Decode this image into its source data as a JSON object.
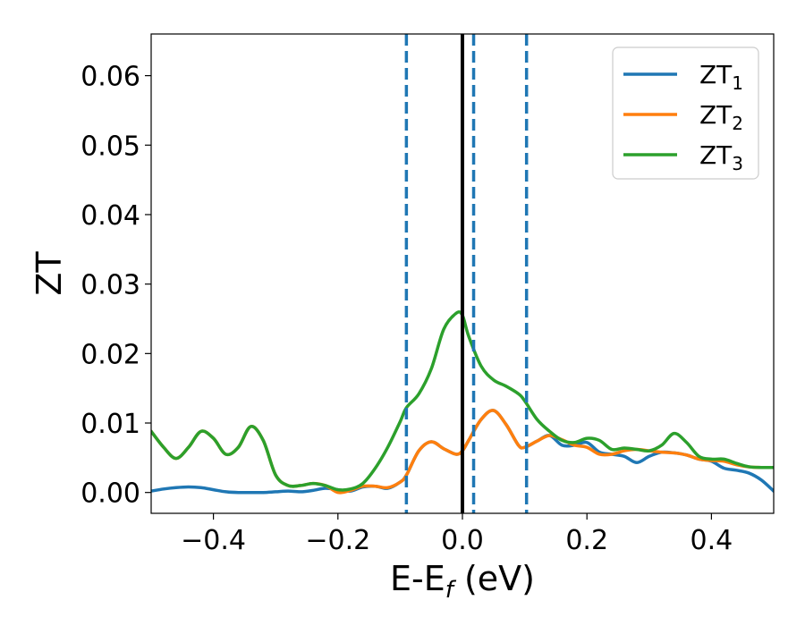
{
  "chart_data": {
    "type": "line",
    "xlabel": "E-E",
    "xlabel_sub": "f",
    "xlabel_unit": " (eV)",
    "ylabel": "ZT",
    "xlim": [
      -0.5,
      0.5
    ],
    "ylim": [
      -0.003,
      0.066
    ],
    "xticks": [
      -0.4,
      -0.2,
      0.0,
      0.2,
      0.4
    ],
    "xtick_labels": [
      "−0.4",
      "−0.2",
      "0.0",
      "0.2",
      "0.4"
    ],
    "yticks": [
      0.0,
      0.01,
      0.02,
      0.03,
      0.04,
      0.05,
      0.06
    ],
    "ytick_labels": [
      "0.00",
      "0.01",
      "0.02",
      "0.03",
      "0.04",
      "0.05",
      "0.06"
    ],
    "grid": false,
    "legend_position": "top-right",
    "vlines": [
      {
        "x": 0.0,
        "style": "solid",
        "color": "#000000"
      },
      {
        "x": -0.09,
        "style": "dashed",
        "color": "#1f77b4"
      },
      {
        "x": 0.018,
        "style": "dashed",
        "color": "#1f77b4"
      },
      {
        "x": 0.103,
        "style": "dashed",
        "color": "#1f77b4"
      }
    ],
    "series": [
      {
        "name": "ZT",
        "sub": "1",
        "color": "#1f77b4",
        "x": [
          -0.5,
          -0.48,
          -0.46,
          -0.44,
          -0.42,
          -0.4,
          -0.38,
          -0.36,
          -0.34,
          -0.32,
          -0.3,
          -0.28,
          -0.26,
          -0.24,
          -0.22,
          -0.2,
          -0.18,
          -0.16,
          -0.14,
          -0.12,
          -0.1,
          -0.09,
          -0.07,
          -0.05,
          -0.03,
          -0.01,
          0.0,
          0.01,
          0.03,
          0.05,
          0.07,
          0.09,
          0.1,
          0.12,
          0.14,
          0.16,
          0.18,
          0.2,
          0.22,
          0.24,
          0.26,
          0.28,
          0.3,
          0.32,
          0.34,
          0.36,
          0.38,
          0.4,
          0.42,
          0.44,
          0.46,
          0.48,
          0.5
        ],
        "y": [
          0.0002,
          0.0005,
          0.0007,
          0.0008,
          0.0007,
          0.0004,
          0.0001,
          0.0,
          0.0,
          0.0,
          0.0001,
          0.0002,
          0.0001,
          0.0003,
          0.0006,
          0.0004,
          0.0002,
          0.0008,
          0.0009,
          0.0006,
          0.0015,
          0.0025,
          0.006,
          0.0073,
          0.0063,
          0.0055,
          0.006,
          0.0075,
          0.0105,
          0.0118,
          0.0098,
          0.0068,
          0.0065,
          0.0074,
          0.0082,
          0.0068,
          0.0068,
          0.0072,
          0.0058,
          0.0055,
          0.0052,
          0.0043,
          0.0052,
          0.0058,
          0.0057,
          0.0054,
          0.0048,
          0.0045,
          0.0035,
          0.0032,
          0.0028,
          0.0018,
          0.0002
        ]
      },
      {
        "name": "ZT",
        "sub": "2",
        "color": "#ff7f0e",
        "x": [
          -0.5,
          -0.48,
          -0.46,
          -0.44,
          -0.42,
          -0.4,
          -0.38,
          -0.36,
          -0.34,
          -0.32,
          -0.3,
          -0.28,
          -0.26,
          -0.24,
          -0.22,
          -0.2,
          -0.18,
          -0.16,
          -0.14,
          -0.12,
          -0.1,
          -0.09,
          -0.07,
          -0.05,
          -0.03,
          -0.01,
          0.0,
          0.01,
          0.03,
          0.05,
          0.07,
          0.09,
          0.1,
          0.12,
          0.14,
          0.16,
          0.18,
          0.2,
          0.22,
          0.24,
          0.26,
          0.28,
          0.3,
          0.32,
          0.34,
          0.36,
          0.38,
          0.4,
          0.42,
          0.44,
          0.46,
          0.48,
          0.5
        ],
        "y": [
          0.0088,
          0.0065,
          0.0049,
          0.0065,
          0.0088,
          0.0078,
          0.0055,
          0.0065,
          0.0095,
          0.0075,
          0.0025,
          0.001,
          0.001,
          0.0013,
          0.001,
          0.0,
          0.0003,
          0.0009,
          0.0009,
          0.0007,
          0.0015,
          0.0025,
          0.006,
          0.0073,
          0.0063,
          0.0055,
          0.006,
          0.0075,
          0.0105,
          0.0118,
          0.0098,
          0.0068,
          0.0065,
          0.0074,
          0.0082,
          0.0076,
          0.0068,
          0.0065,
          0.0055,
          0.0055,
          0.006,
          0.0062,
          0.006,
          0.0058,
          0.0057,
          0.0054,
          0.0048,
          0.0046,
          0.0045,
          0.004,
          0.0037,
          0.0036,
          0.0036
        ]
      },
      {
        "name": "ZT",
        "sub": "3",
        "color": "#2ca02c",
        "x": [
          -0.5,
          -0.48,
          -0.46,
          -0.44,
          -0.42,
          -0.4,
          -0.38,
          -0.36,
          -0.34,
          -0.32,
          -0.3,
          -0.28,
          -0.26,
          -0.24,
          -0.22,
          -0.2,
          -0.18,
          -0.16,
          -0.14,
          -0.12,
          -0.1,
          -0.09,
          -0.07,
          -0.05,
          -0.03,
          -0.01,
          0.0,
          0.01,
          0.03,
          0.05,
          0.07,
          0.09,
          0.1,
          0.12,
          0.14,
          0.16,
          0.18,
          0.2,
          0.22,
          0.24,
          0.26,
          0.28,
          0.3,
          0.32,
          0.34,
          0.36,
          0.38,
          0.4,
          0.42,
          0.44,
          0.46,
          0.48,
          0.5
        ],
        "y": [
          0.0088,
          0.0065,
          0.0049,
          0.0065,
          0.0088,
          0.0078,
          0.0055,
          0.0065,
          0.0095,
          0.0075,
          0.0025,
          0.001,
          0.001,
          0.0013,
          0.001,
          0.0004,
          0.0005,
          0.0013,
          0.0035,
          0.0065,
          0.0102,
          0.0122,
          0.0142,
          0.0178,
          0.0235,
          0.0258,
          0.0255,
          0.0225,
          0.0182,
          0.0162,
          0.0153,
          0.0142,
          0.0132,
          0.0105,
          0.0088,
          0.0075,
          0.0072,
          0.0078,
          0.0075,
          0.0062,
          0.0064,
          0.0062,
          0.006,
          0.0068,
          0.0085,
          0.0072,
          0.0052,
          0.0048,
          0.0048,
          0.0042,
          0.0037,
          0.0036,
          0.0036
        ]
      }
    ]
  }
}
